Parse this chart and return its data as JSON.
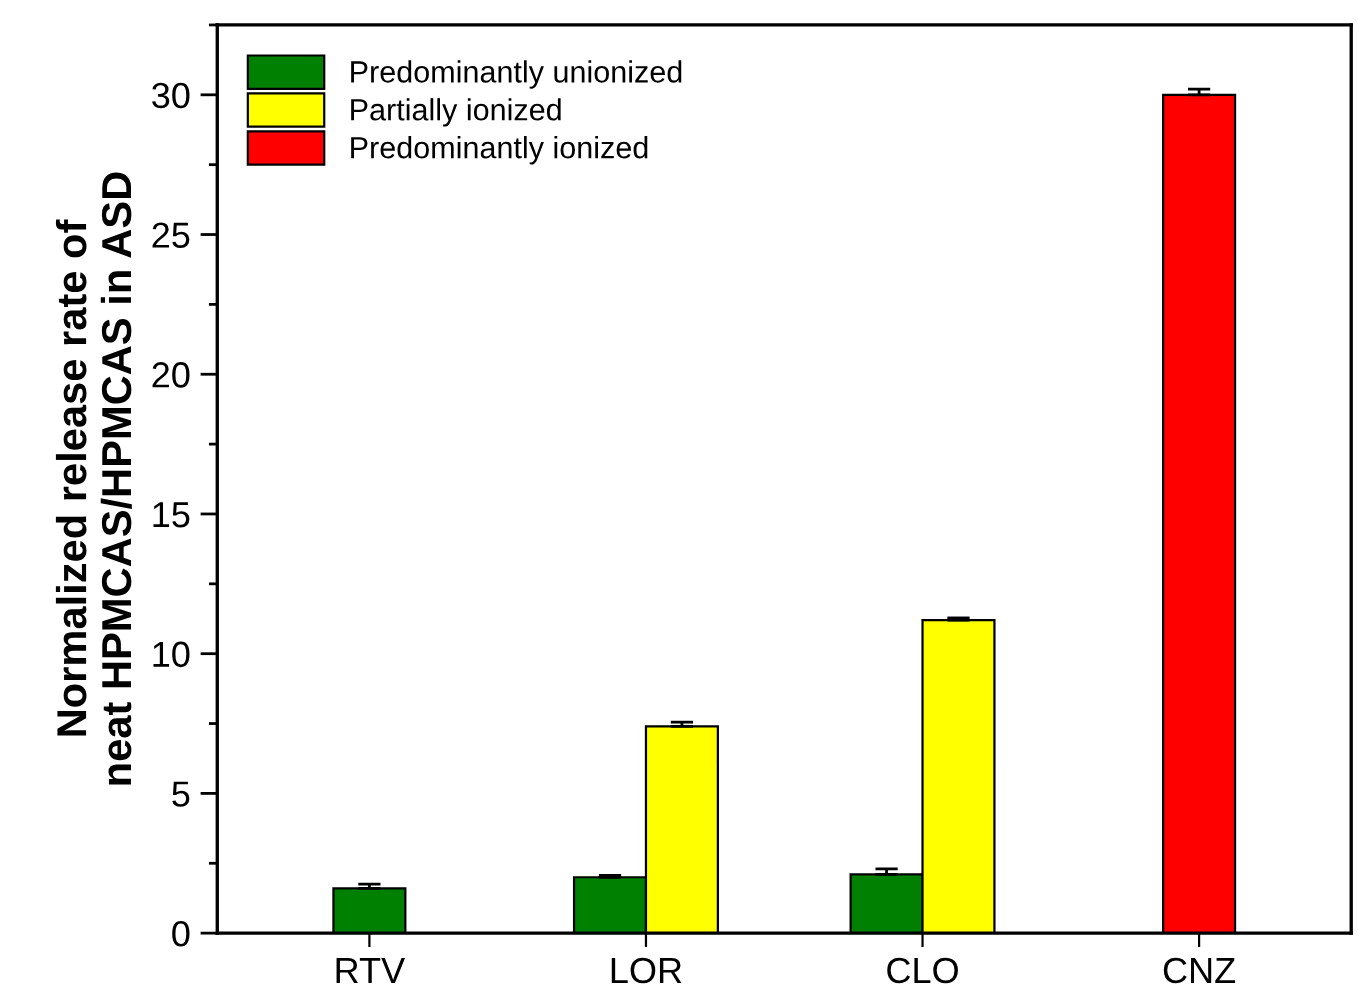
{
  "chart_data": {
    "type": "bar",
    "ylabel": "Normalized release rate of\nneat HPMCAS/HPMCAS in ASD",
    "categories": [
      "RTV",
      "LOR",
      "CLO",
      "CNZ"
    ],
    "series": [
      {
        "name": "Predominantly unionized",
        "color": "#008000",
        "values": [
          1.6,
          2.0,
          2.1,
          null
        ],
        "errors": [
          0.15,
          0.07,
          0.2,
          null
        ]
      },
      {
        "name": "Partially ionized",
        "color": "#ffff00",
        "values": [
          null,
          7.4,
          11.2,
          null
        ],
        "errors": [
          null,
          0.15,
          0.08,
          null
        ]
      },
      {
        "name": "Predominantly ionized",
        "color": "#ff0000",
        "values": [
          null,
          null,
          null,
          30.0
        ],
        "errors": [
          null,
          null,
          null,
          0.2
        ]
      }
    ],
    "ylim": [
      0,
      32.5
    ],
    "yticks": [
      0,
      5,
      10,
      15,
      20,
      25,
      30
    ],
    "grid": false,
    "legend": "top left"
  }
}
